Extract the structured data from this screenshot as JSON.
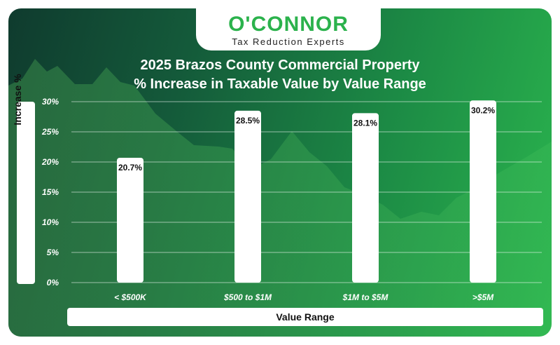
{
  "logo": {
    "name": "O'CONNOR",
    "tagline": "Tax Reduction Experts"
  },
  "colors": {
    "brand_green": "#2bb24c",
    "bar": "#ffffff",
    "background_dark": "#0f3b2e",
    "background_light": "#2bb64e"
  },
  "chart_data": {
    "type": "bar",
    "title": "2025 Brazos County Commercial Property",
    "subtitle": "% Increase in Taxable Value by Value Range",
    "xlabel": "Value Range",
    "ylabel": "Increase %",
    "categories": [
      "< $500K",
      "$500 to $1M",
      "$1M to $5M",
      ">$5M"
    ],
    "values": [
      20.7,
      28.5,
      28.1,
      30.2
    ],
    "value_labels": [
      "20.7%",
      "28.5%",
      "28.1%",
      "30.2%"
    ],
    "ylim": [
      0,
      30
    ],
    "yticks": [
      0,
      5,
      10,
      15,
      20,
      25,
      30
    ],
    "ytick_labels": [
      "0%",
      "5%",
      "10%",
      "15%",
      "20%",
      "25%",
      "30%"
    ],
    "grid": true,
    "legend": "none"
  }
}
